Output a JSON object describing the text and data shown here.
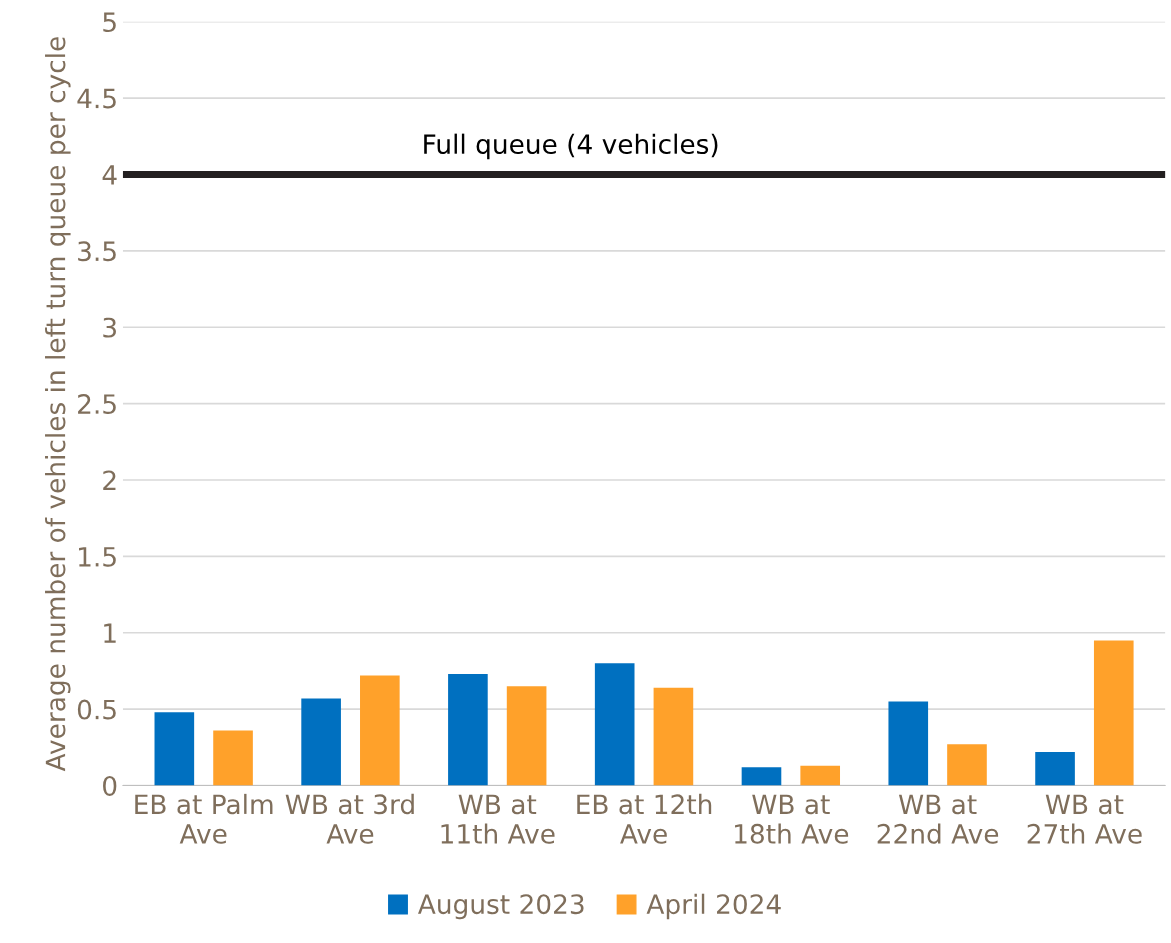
{
  "chart_data": {
    "type": "bar",
    "ylabel": "Average number of vehicles in left turn queue per cycle",
    "categories": [
      "EB at Palm\nAve",
      "WB at 3rd\nAve",
      "WB at\n11th Ave",
      "EB at 12th\nAve",
      "WB at\n18th Ave",
      "WB at\n22nd Ave",
      "WB at\n27th Ave"
    ],
    "series": [
      {
        "name": "August 2023",
        "color": "#0070c0",
        "values": [
          0.48,
          0.57,
          0.73,
          0.8,
          0.12,
          0.55,
          0.22
        ]
      },
      {
        "name": "April 2024",
        "color": "#ffa12a",
        "values": [
          0.36,
          0.72,
          0.65,
          0.64,
          0.13,
          0.27,
          0.95
        ]
      }
    ],
    "ylim": [
      0,
      5
    ],
    "yticks": [
      0,
      0.5,
      1,
      1.5,
      2,
      2.5,
      3,
      3.5,
      4,
      4.5,
      5
    ],
    "ref_lines": [
      {
        "axis": "y",
        "value": 4,
        "label": "Full queue (4 vehicles)",
        "color": "#231f20"
      }
    ],
    "grid": "y",
    "legend": "bottom"
  }
}
